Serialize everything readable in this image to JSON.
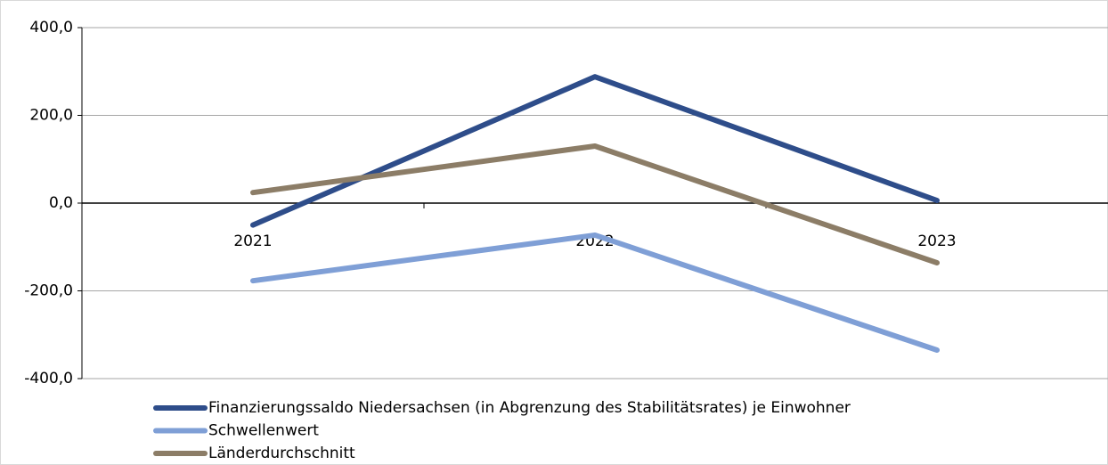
{
  "chart_data": {
    "type": "line",
    "categories": [
      "2021",
      "2022",
      "2023"
    ],
    "series": [
      {
        "name": "Finanzierungssaldo Niedersachsen (in Abgrenzung des Stabilitätsrates) je Einwohner",
        "color": "#2e4d8a",
        "values": [
          -50,
          288,
          6
        ]
      },
      {
        "name": "Schwellenwert",
        "color": "#7f9fd6",
        "values": [
          -177,
          -73,
          -335
        ]
      },
      {
        "name": "Länderdurchschnitt",
        "color": "#8c7d67",
        "values": [
          24,
          130,
          -136
        ]
      }
    ],
    "ylim": [
      -400,
      400
    ],
    "yticks": [
      {
        "value": -400,
        "label": "-400,0"
      },
      {
        "value": -200,
        "label": "-200,0"
      },
      {
        "value": 0,
        "label": "0,0"
      },
      {
        "value": 200,
        "label": "200,0"
      },
      {
        "value": 400,
        "label": "400,0"
      }
    ],
    "grid": true
  }
}
